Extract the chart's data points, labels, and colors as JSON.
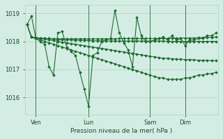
{
  "bg_color": "#d4ede4",
  "grid_color": "#a8d4c0",
  "line_color": "#1e6b30",
  "title": "Pression niveau de la mer( hPa )",
  "ylim": [
    1015.4,
    1019.3
  ],
  "yticks": [
    1016,
    1017,
    1018,
    1019
  ],
  "xtick_labels": [
    "Ven",
    "Lun",
    "Sam",
    "Dim"
  ],
  "xtick_positions": [
    2,
    14,
    28,
    36
  ],
  "vline_positions": [
    2,
    14,
    28,
    36
  ],
  "total_points": 44,
  "series": {
    "s1": [
      1018.6,
      1018.9,
      1018.1,
      1018.0,
      1017.9,
      1017.1,
      1016.8,
      1018.3,
      1018.35,
      1017.8,
      1017.65,
      1017.5,
      1016.9,
      1016.3,
      1015.7,
      1017.5,
      1017.6,
      1018.0,
      1018.05,
      1018.1,
      1019.1,
      1018.3,
      1017.95,
      1017.7,
      1017.1,
      1018.85,
      1018.2,
      1018.0,
      1018.0,
      1018.05,
      1018.1,
      1018.15,
      1018.05,
      1018.2,
      1018.05,
      1018.1,
      1017.85,
      1018.05,
      1018.05,
      1018.1,
      1018.1,
      1018.2,
      1018.2,
      1018.3
    ],
    "s2": [
      1018.6,
      1018.15,
      1018.1,
      1018.05,
      1018.0,
      1017.95,
      1017.9,
      1017.85,
      1017.8,
      1017.75,
      1017.7,
      1017.65,
      1017.6,
      1017.55,
      1017.5,
      1017.45,
      1017.4,
      1017.35,
      1017.3,
      1017.25,
      1017.2,
      1017.15,
      1017.1,
      1017.05,
      1017.0,
      1016.95,
      1016.9,
      1016.85,
      1016.8,
      1016.75,
      1016.7,
      1016.7,
      1016.65,
      1016.65,
      1016.65,
      1016.65,
      1016.7,
      1016.7,
      1016.75,
      1016.8,
      1016.8,
      1016.85,
      1016.85,
      1016.9
    ],
    "s3": [
      1018.6,
      1018.15,
      1018.13,
      1018.1,
      1018.08,
      1018.05,
      1018.03,
      1018.0,
      1017.97,
      1017.95,
      1017.92,
      1017.9,
      1017.87,
      1017.85,
      1017.82,
      1017.8,
      1017.77,
      1017.75,
      1017.72,
      1017.7,
      1017.67,
      1017.65,
      1017.62,
      1017.6,
      1017.57,
      1017.55,
      1017.52,
      1017.5,
      1017.47,
      1017.45,
      1017.42,
      1017.4,
      1017.4,
      1017.38,
      1017.37,
      1017.36,
      1017.35,
      1017.35,
      1017.34,
      1017.33,
      1017.33,
      1017.32,
      1017.32,
      1017.31
    ],
    "s4": [
      1018.6,
      1018.15,
      1018.13,
      1018.12,
      1018.1,
      1018.1,
      1018.08,
      1018.07,
      1018.06,
      1018.05,
      1018.05,
      1018.04,
      1018.04,
      1018.03,
      1018.03,
      1018.02,
      1018.02,
      1018.02,
      1018.01,
      1018.01,
      1018.01,
      1018.01,
      1018.01,
      1018.01,
      1018.01,
      1018.01,
      1018.01,
      1018.01,
      1018.01,
      1018.01,
      1018.01,
      1018.01,
      1018.0,
      1018.0,
      1018.0,
      1018.0,
      1018.0,
      1018.0,
      1018.0,
      1018.0,
      1018.0,
      1018.0,
      1018.0,
      1018.0
    ],
    "s5": [
      1018.6,
      1018.15,
      1018.13,
      1018.12,
      1018.1,
      1018.1,
      1018.09,
      1018.09,
      1018.09,
      1018.09,
      1018.09,
      1018.09,
      1018.09,
      1018.09,
      1018.09,
      1018.09,
      1018.09,
      1018.09,
      1018.09,
      1018.09,
      1018.09,
      1018.1,
      1018.1,
      1018.1,
      1018.1,
      1018.1,
      1018.1,
      1018.1,
      1018.1,
      1018.1,
      1018.1,
      1018.1,
      1018.1,
      1018.11,
      1018.11,
      1018.12,
      1018.12,
      1018.12,
      1018.12,
      1018.13,
      1018.13,
      1018.14,
      1018.14,
      1018.15
    ]
  },
  "linewidth": 0.8,
  "markersize": 2.0
}
